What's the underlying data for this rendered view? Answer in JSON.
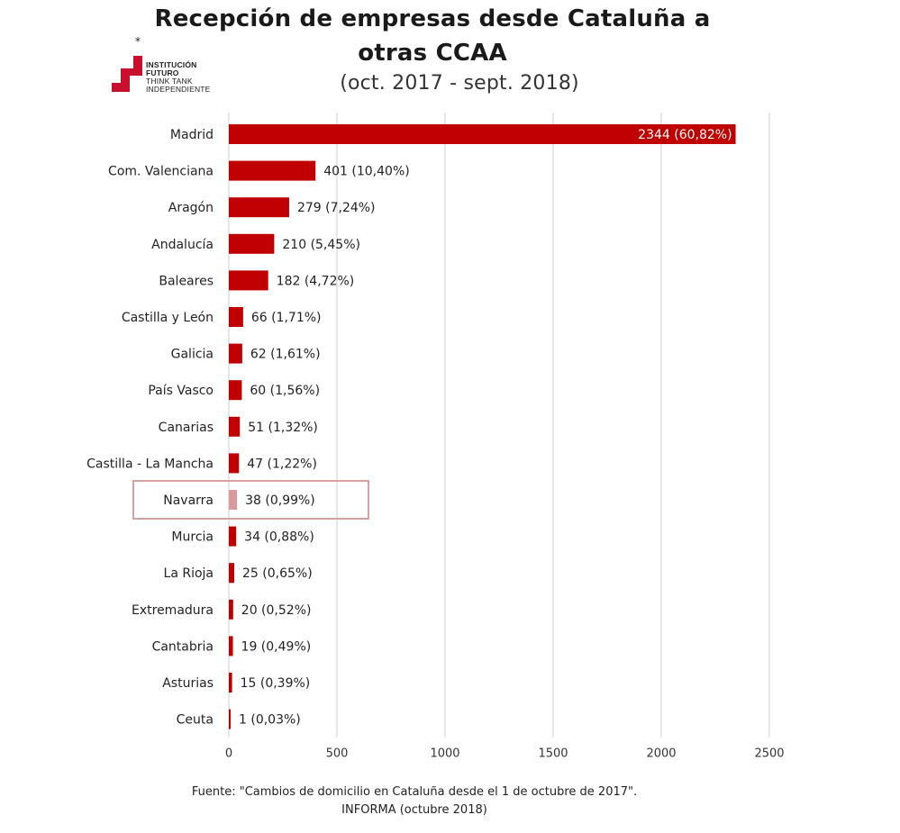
{
  "title_line1": "Recepción de empresas desde Cataluña a",
  "title_line2": "otras CCAA",
  "subtitle": "(oct. 2017 - sept. 2018)",
  "logo": {
    "line1": "INSTITUCIÓN",
    "line2": "FUTURO",
    "line3": "THINK TANK",
    "line4": "INDEPENDIENTE",
    "color": "#c8102e",
    "icon": "institucion-futuro-logo"
  },
  "source_line1": "Fuente: \"Cambios de domicilio en Cataluña desde el 1 de octubre de 2017\".",
  "source_line2": "INFORMA (octubre 2018)",
  "chart_data": {
    "type": "bar",
    "orientation": "horizontal",
    "categories": [
      "Madrid",
      "Com. Valenciana",
      "Aragón",
      "Andalucía",
      "Baleares",
      "Castilla y León",
      "Galicia",
      "País Vasco",
      "Canarias",
      "Castilla - La Mancha",
      "Navarra",
      "Murcia",
      "La Rioja",
      "Extremadura",
      "Cantabria",
      "Asturias",
      "Ceuta"
    ],
    "values": [
      2344,
      401,
      279,
      210,
      182,
      66,
      62,
      60,
      51,
      47,
      38,
      34,
      25,
      20,
      19,
      15,
      1
    ],
    "data_labels": [
      "2344 (60,82%)",
      "401 (10,40%)",
      "279 (7,24%)",
      "210 (5,45%)",
      "182 (4,72%)",
      "66 (1,71%)",
      "62 (1,61%)",
      "60 (1,56%)",
      "51 (1,32%)",
      "47 (1,22%)",
      "38 (0,99%)",
      "34 (0,88%)",
      "25 (0,65%)",
      "20 (0,52%)",
      "19 (0,49%)",
      "15 (0,39%)",
      "1 (0,03%)"
    ],
    "xlim": [
      0,
      2500
    ],
    "xticks": [
      0,
      500,
      1000,
      1500,
      2000,
      2500
    ],
    "grid": true,
    "bar_color": "#c00000",
    "highlight_category": "Navarra",
    "highlight_bar_color": "#d99a9a",
    "highlight_box_color": "#d9a0a0"
  }
}
